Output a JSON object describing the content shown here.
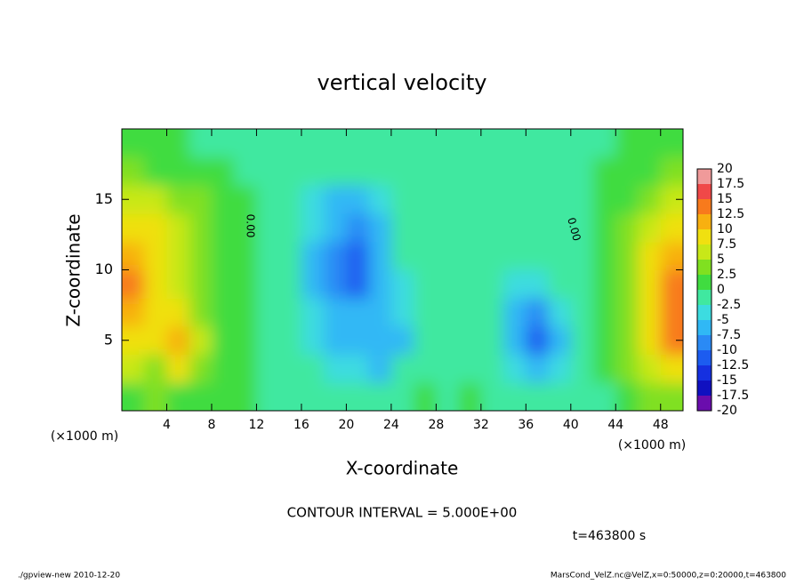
{
  "chart_data": {
    "type": "contour",
    "title": "vertical velocity",
    "xlabel": "X-coordinate",
    "ylabel": "Z-coordinate",
    "x_unit_left": "(×1000 m)",
    "x_unit_right": "(×1000 m)",
    "contour_interval": "CONTOUR INTERVAL = 5.000E+00",
    "time_label": "t=463800 s",
    "footer_left": "./gpview-new  2010-12-20",
    "footer_right": "MarsCond_VelZ.nc@VelZ,x=0:50000,z=0:20000,t=463800",
    "contour_labels": [
      "0.00",
      "0.00"
    ],
    "xlim": [
      0,
      50
    ],
    "ylim": [
      0,
      20
    ],
    "xticks": [
      4,
      8,
      12,
      16,
      20,
      24,
      28,
      32,
      36,
      40,
      44,
      48
    ],
    "yticks": [
      5,
      10,
      15
    ],
    "x": [
      1,
      3,
      5,
      7,
      9,
      11,
      13,
      15,
      17,
      19,
      21,
      23,
      25,
      27,
      29,
      31,
      33,
      35,
      37,
      39,
      41,
      43,
      45,
      47,
      49
    ],
    "z": [
      1,
      3,
      5,
      7,
      9,
      11,
      13,
      15,
      17,
      19
    ],
    "values": [
      [
        1,
        3,
        2,
        2,
        1,
        0.5,
        0,
        0,
        -1,
        -1,
        -1,
        -1,
        0,
        1,
        0,
        1,
        0,
        -1,
        -2,
        -1,
        -1,
        0,
        2,
        4,
        5
      ],
      [
        6,
        4,
        8,
        4,
        2,
        0.5,
        0,
        -0.5,
        -2,
        -3,
        -4,
        -5,
        -2,
        0,
        0,
        0,
        -1,
        -4,
        -6,
        -4,
        -1,
        0.5,
        3,
        7,
        9
      ],
      [
        9,
        8,
        11,
        6,
        2,
        0.5,
        0,
        -1,
        -3,
        -5,
        -6,
        -7,
        -5,
        -1,
        0,
        0,
        -2,
        -7,
        -11,
        -6,
        -2,
        1,
        4,
        9,
        13
      ],
      [
        12,
        9,
        8,
        5,
        2,
        0.5,
        0,
        -1,
        -4,
        -6,
        -7,
        -6,
        -4,
        -1,
        0,
        0,
        -2,
        -6,
        -8,
        -4,
        -1,
        1,
        5,
        10,
        14
      ],
      [
        14,
        10,
        6,
        4,
        2,
        0.5,
        0,
        -1,
        -5,
        -8,
        -10,
        -6,
        -3,
        0,
        0,
        0,
        -1,
        -3,
        -4,
        -2,
        0,
        1,
        5,
        9,
        13
      ],
      [
        12,
        9,
        6,
        4,
        2,
        0.5,
        0,
        -1,
        -5,
        -9,
        -11,
        -6,
        -2,
        0,
        0,
        0,
        -0.5,
        -1,
        -1,
        -0.5,
        0,
        1,
        4,
        8,
        12
      ],
      [
        9,
        8,
        6,
        4,
        2,
        0.5,
        0,
        -1,
        -4,
        -7,
        -8,
        -5,
        -2,
        0,
        0,
        0,
        0,
        0,
        0,
        0,
        0,
        1,
        3,
        6,
        9
      ],
      [
        7,
        6,
        5,
        3,
        1.5,
        0.5,
        0,
        -1,
        -3,
        -5,
        -5.5,
        -4,
        -1.5,
        0,
        0,
        0,
        0,
        0,
        0,
        0,
        0,
        1,
        2,
        4,
        6
      ],
      [
        3,
        2.5,
        2,
        1,
        0.5,
        0,
        0,
        -0.5,
        -1,
        -1.5,
        -1.5,
        -1,
        -0.5,
        0,
        0,
        0,
        0,
        0,
        0,
        0,
        0,
        0.5,
        1,
        2,
        3
      ],
      [
        1,
        1,
        0.5,
        0,
        0,
        0,
        0,
        -0.5,
        -0.5,
        -0.5,
        -0.5,
        -0.5,
        0,
        0,
        0,
        0,
        0,
        0,
        0,
        0,
        0,
        0,
        0.5,
        1,
        1
      ]
    ],
    "levels": [
      20,
      17.5,
      15,
      12.5,
      10,
      7.5,
      5,
      2.5,
      0,
      -2.5,
      -5,
      -7.5,
      -10,
      -12.5,
      -15,
      -17.5,
      -20
    ],
    "colors": [
      "#f09a9a",
      "#f04848",
      "#f87a1c",
      "#f8b010",
      "#f0e010",
      "#c8e818",
      "#80e020",
      "#40dc40",
      "#40e8a0",
      "#3cdce0",
      "#30b8f5",
      "#2a8af5",
      "#1c5cf0",
      "#1530e0",
      "#1010c0",
      "#6a0dad"
    ]
  }
}
